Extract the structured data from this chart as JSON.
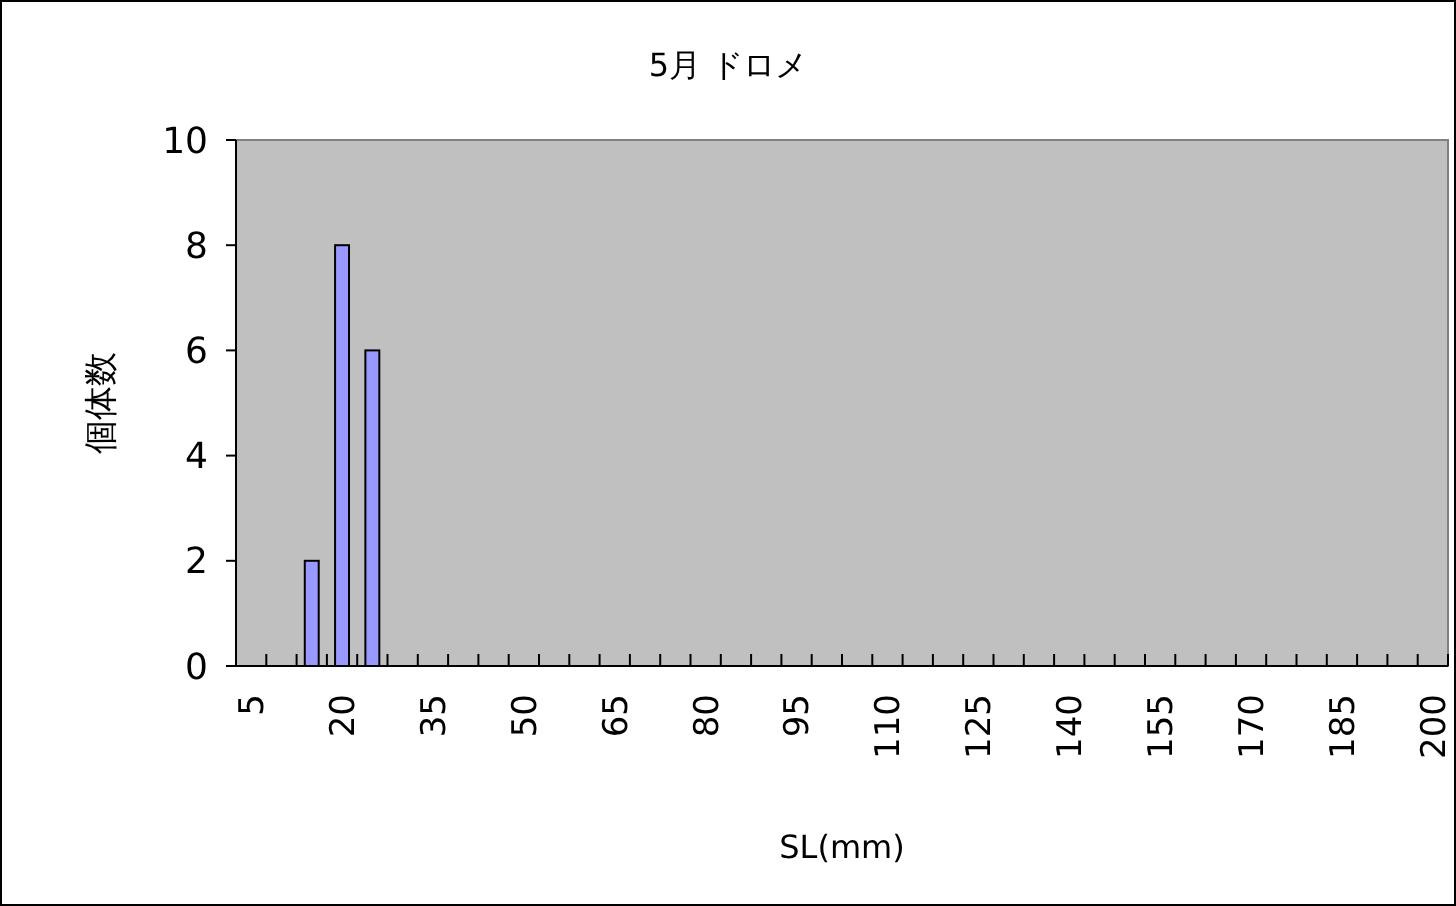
{
  "chart_data": {
    "type": "bar",
    "title": "5月  ドロメ",
    "xlabel": "SL(mm)",
    "ylabel": "個体数",
    "categories": [
      "5",
      null,
      null,
      "20",
      null,
      null,
      "35",
      null,
      null,
      "50",
      null,
      null,
      "65",
      null,
      null,
      "80",
      null,
      null,
      "95",
      null,
      null,
      "110",
      null,
      null,
      "125",
      null,
      null,
      "140",
      null,
      null,
      "155",
      null,
      null,
      "170",
      null,
      null,
      "185",
      null,
      null,
      "200"
    ],
    "values": [
      0,
      0,
      2,
      8,
      6,
      0,
      0,
      0,
      0,
      0,
      0,
      0,
      0,
      0,
      0,
      0,
      0,
      0,
      0,
      0,
      0,
      0,
      0,
      0,
      0,
      0,
      0,
      0,
      0,
      0,
      0,
      0,
      0,
      0,
      0,
      0,
      0,
      0,
      0,
      0
    ],
    "color": "#9999ff",
    "ylim": [
      0,
      10
    ],
    "yticks": [
      0,
      2,
      4,
      6,
      8,
      10
    ],
    "grid": false
  }
}
